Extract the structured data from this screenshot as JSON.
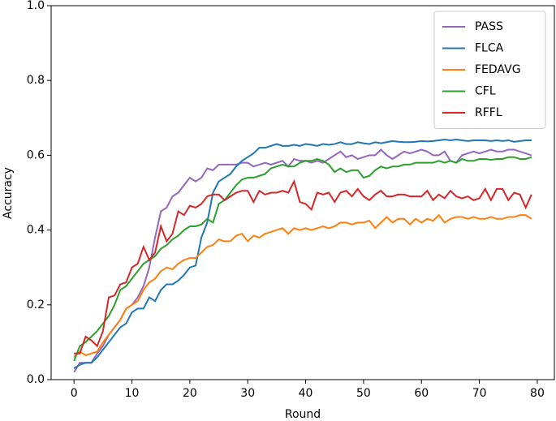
{
  "chart_data": {
    "type": "line",
    "xlabel": "Round",
    "ylabel": "Accuracy",
    "x": [
      0,
      1,
      2,
      3,
      4,
      5,
      6,
      7,
      8,
      9,
      10,
      11,
      12,
      13,
      14,
      15,
      16,
      17,
      18,
      19,
      20,
      21,
      22,
      23,
      24,
      25,
      26,
      27,
      28,
      29,
      30,
      31,
      32,
      33,
      34,
      35,
      36,
      37,
      38,
      39,
      40,
      41,
      42,
      43,
      44,
      45,
      46,
      47,
      48,
      49,
      50,
      51,
      52,
      53,
      54,
      55,
      56,
      57,
      58,
      59,
      60,
      61,
      62,
      63,
      64,
      65,
      66,
      67,
      68,
      69,
      70,
      71,
      72,
      73,
      74,
      75,
      76,
      77,
      78,
      79
    ],
    "series": [
      {
        "name": "PASS",
        "color": "#9467bd",
        "values": [
          0.02,
          0.045,
          0.045,
          0.045,
          0.07,
          0.09,
          0.12,
          0.14,
          0.16,
          0.19,
          0.2,
          0.22,
          0.25,
          0.3,
          0.38,
          0.45,
          0.46,
          0.49,
          0.5,
          0.52,
          0.54,
          0.53,
          0.54,
          0.565,
          0.56,
          0.575,
          0.575,
          0.575,
          0.575,
          0.58,
          0.58,
          0.57,
          0.575,
          0.58,
          0.575,
          0.58,
          0.585,
          0.57,
          0.59,
          0.585,
          0.585,
          0.58,
          0.585,
          0.58,
          0.59,
          0.6,
          0.61,
          0.595,
          0.6,
          0.59,
          0.595,
          0.6,
          0.6,
          0.615,
          0.6,
          0.59,
          0.6,
          0.61,
          0.605,
          0.61,
          0.615,
          0.61,
          0.6,
          0.6,
          0.61,
          0.585,
          0.58,
          0.6,
          0.605,
          0.61,
          0.605,
          0.61,
          0.615,
          0.61,
          0.61,
          0.615,
          0.615,
          0.61,
          0.605,
          0.6
        ]
      },
      {
        "name": "FLCA",
        "color": "#1f77b4",
        "values": [
          0.03,
          0.04,
          0.045,
          0.045,
          0.06,
          0.08,
          0.1,
          0.12,
          0.14,
          0.15,
          0.18,
          0.19,
          0.19,
          0.22,
          0.21,
          0.24,
          0.255,
          0.255,
          0.265,
          0.28,
          0.3,
          0.305,
          0.38,
          0.42,
          0.5,
          0.53,
          0.54,
          0.55,
          0.57,
          0.585,
          0.595,
          0.605,
          0.62,
          0.62,
          0.625,
          0.63,
          0.625,
          0.625,
          0.628,
          0.625,
          0.63,
          0.628,
          0.625,
          0.63,
          0.628,
          0.63,
          0.635,
          0.63,
          0.63,
          0.635,
          0.632,
          0.63,
          0.635,
          0.632,
          0.635,
          0.638,
          0.636,
          0.635,
          0.635,
          0.636,
          0.638,
          0.637,
          0.638,
          0.64,
          0.642,
          0.64,
          0.642,
          0.64,
          0.638,
          0.64,
          0.64,
          0.64,
          0.638,
          0.64,
          0.638,
          0.64,
          0.636,
          0.638,
          0.64,
          0.64
        ]
      },
      {
        "name": "FEDAVG",
        "color": "#ff7f0e",
        "values": [
          0.06,
          0.075,
          0.065,
          0.07,
          0.075,
          0.1,
          0.12,
          0.14,
          0.16,
          0.19,
          0.2,
          0.21,
          0.24,
          0.26,
          0.27,
          0.29,
          0.3,
          0.295,
          0.31,
          0.32,
          0.325,
          0.325,
          0.34,
          0.355,
          0.36,
          0.375,
          0.37,
          0.37,
          0.385,
          0.39,
          0.37,
          0.385,
          0.38,
          0.39,
          0.395,
          0.4,
          0.405,
          0.39,
          0.405,
          0.4,
          0.405,
          0.4,
          0.405,
          0.41,
          0.405,
          0.41,
          0.42,
          0.42,
          0.415,
          0.42,
          0.42,
          0.425,
          0.405,
          0.42,
          0.435,
          0.42,
          0.43,
          0.43,
          0.415,
          0.43,
          0.42,
          0.43,
          0.425,
          0.44,
          0.42,
          0.43,
          0.435,
          0.435,
          0.43,
          0.435,
          0.43,
          0.43,
          0.435,
          0.43,
          0.43,
          0.435,
          0.435,
          0.44,
          0.44,
          0.43
        ]
      },
      {
        "name": "CFL",
        "color": "#2ca02c",
        "values": [
          0.05,
          0.09,
          0.1,
          0.115,
          0.13,
          0.15,
          0.17,
          0.2,
          0.24,
          0.25,
          0.27,
          0.29,
          0.31,
          0.32,
          0.33,
          0.35,
          0.36,
          0.375,
          0.385,
          0.4,
          0.41,
          0.41,
          0.415,
          0.43,
          0.42,
          0.47,
          0.48,
          0.5,
          0.52,
          0.535,
          0.54,
          0.54,
          0.545,
          0.55,
          0.565,
          0.57,
          0.575,
          0.57,
          0.57,
          0.58,
          0.585,
          0.585,
          0.59,
          0.585,
          0.575,
          0.555,
          0.565,
          0.555,
          0.56,
          0.56,
          0.54,
          0.545,
          0.56,
          0.57,
          0.565,
          0.57,
          0.57,
          0.575,
          0.575,
          0.58,
          0.58,
          0.58,
          0.58,
          0.585,
          0.58,
          0.585,
          0.58,
          0.59,
          0.585,
          0.585,
          0.59,
          0.59,
          0.588,
          0.59,
          0.59,
          0.595,
          0.595,
          0.59,
          0.59,
          0.595
        ]
      },
      {
        "name": "RFFL",
        "color": "#d62728",
        "values": [
          0.07,
          0.07,
          0.115,
          0.105,
          0.09,
          0.13,
          0.22,
          0.225,
          0.255,
          0.26,
          0.3,
          0.31,
          0.355,
          0.32,
          0.34,
          0.41,
          0.37,
          0.39,
          0.45,
          0.44,
          0.465,
          0.46,
          0.47,
          0.49,
          0.495,
          0.495,
          0.48,
          0.49,
          0.5,
          0.505,
          0.505,
          0.475,
          0.505,
          0.495,
          0.5,
          0.5,
          0.505,
          0.5,
          0.53,
          0.475,
          0.47,
          0.455,
          0.5,
          0.495,
          0.5,
          0.475,
          0.5,
          0.505,
          0.49,
          0.51,
          0.49,
          0.48,
          0.495,
          0.505,
          0.49,
          0.49,
          0.495,
          0.495,
          0.49,
          0.49,
          0.49,
          0.505,
          0.48,
          0.495,
          0.485,
          0.505,
          0.49,
          0.485,
          0.49,
          0.48,
          0.485,
          0.51,
          0.48,
          0.51,
          0.51,
          0.48,
          0.5,
          0.495,
          0.46,
          0.495
        ]
      }
    ],
    "xlim": [
      -3.95,
      82.95
    ],
    "ylim": [
      0,
      1
    ],
    "xticks": [
      0,
      10,
      20,
      30,
      40,
      50,
      60,
      70,
      80
    ],
    "yticks": [
      {
        "value": 0,
        "label": "0.0"
      },
      0.2,
      0.4,
      0.6,
      0.8,
      {
        "value": 1,
        "label": "1.0"
      }
    ],
    "legend": "upper right"
  }
}
